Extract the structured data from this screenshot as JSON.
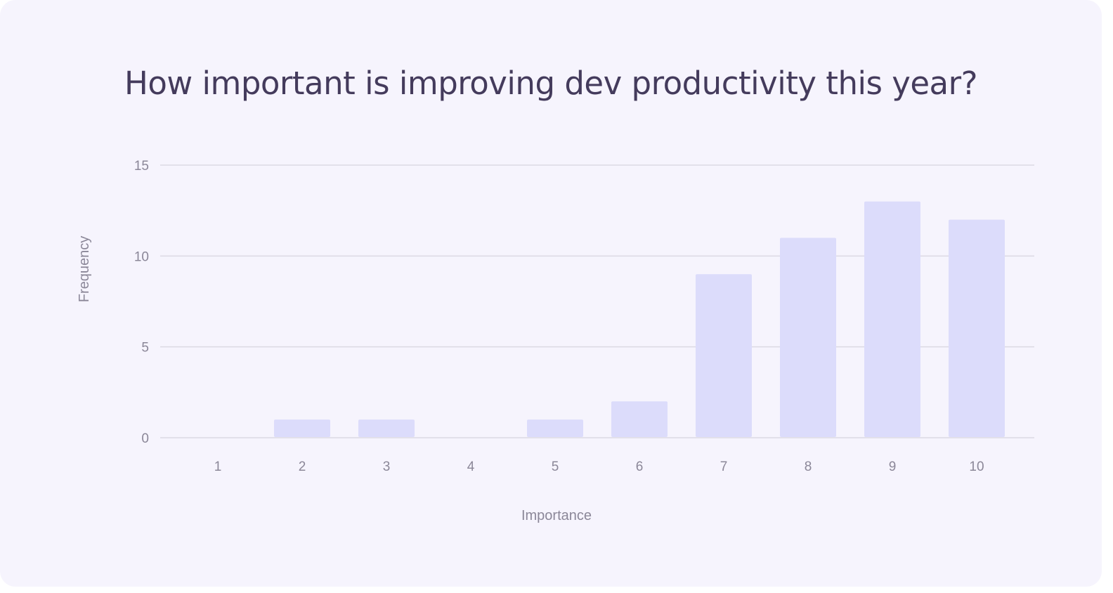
{
  "chart_data": {
    "type": "bar",
    "title": "How important is improving dev productivity this year?",
    "xlabel": "Importance",
    "ylabel": "Frequency",
    "categories": [
      "1",
      "2",
      "3",
      "4",
      "5",
      "6",
      "7",
      "8",
      "9",
      "10"
    ],
    "values": [
      0,
      1,
      1,
      0,
      1,
      2,
      9,
      11,
      13,
      12
    ],
    "ylim": [
      0,
      15
    ],
    "yticks": [
      0,
      5,
      10,
      15
    ],
    "grid": true,
    "legend": "none",
    "colors": {
      "bar": "#dcdcfb",
      "grid": "#dcd9e3",
      "background": "#f6f4fd",
      "title": "#443b5c",
      "label": "#8b8798"
    }
  }
}
